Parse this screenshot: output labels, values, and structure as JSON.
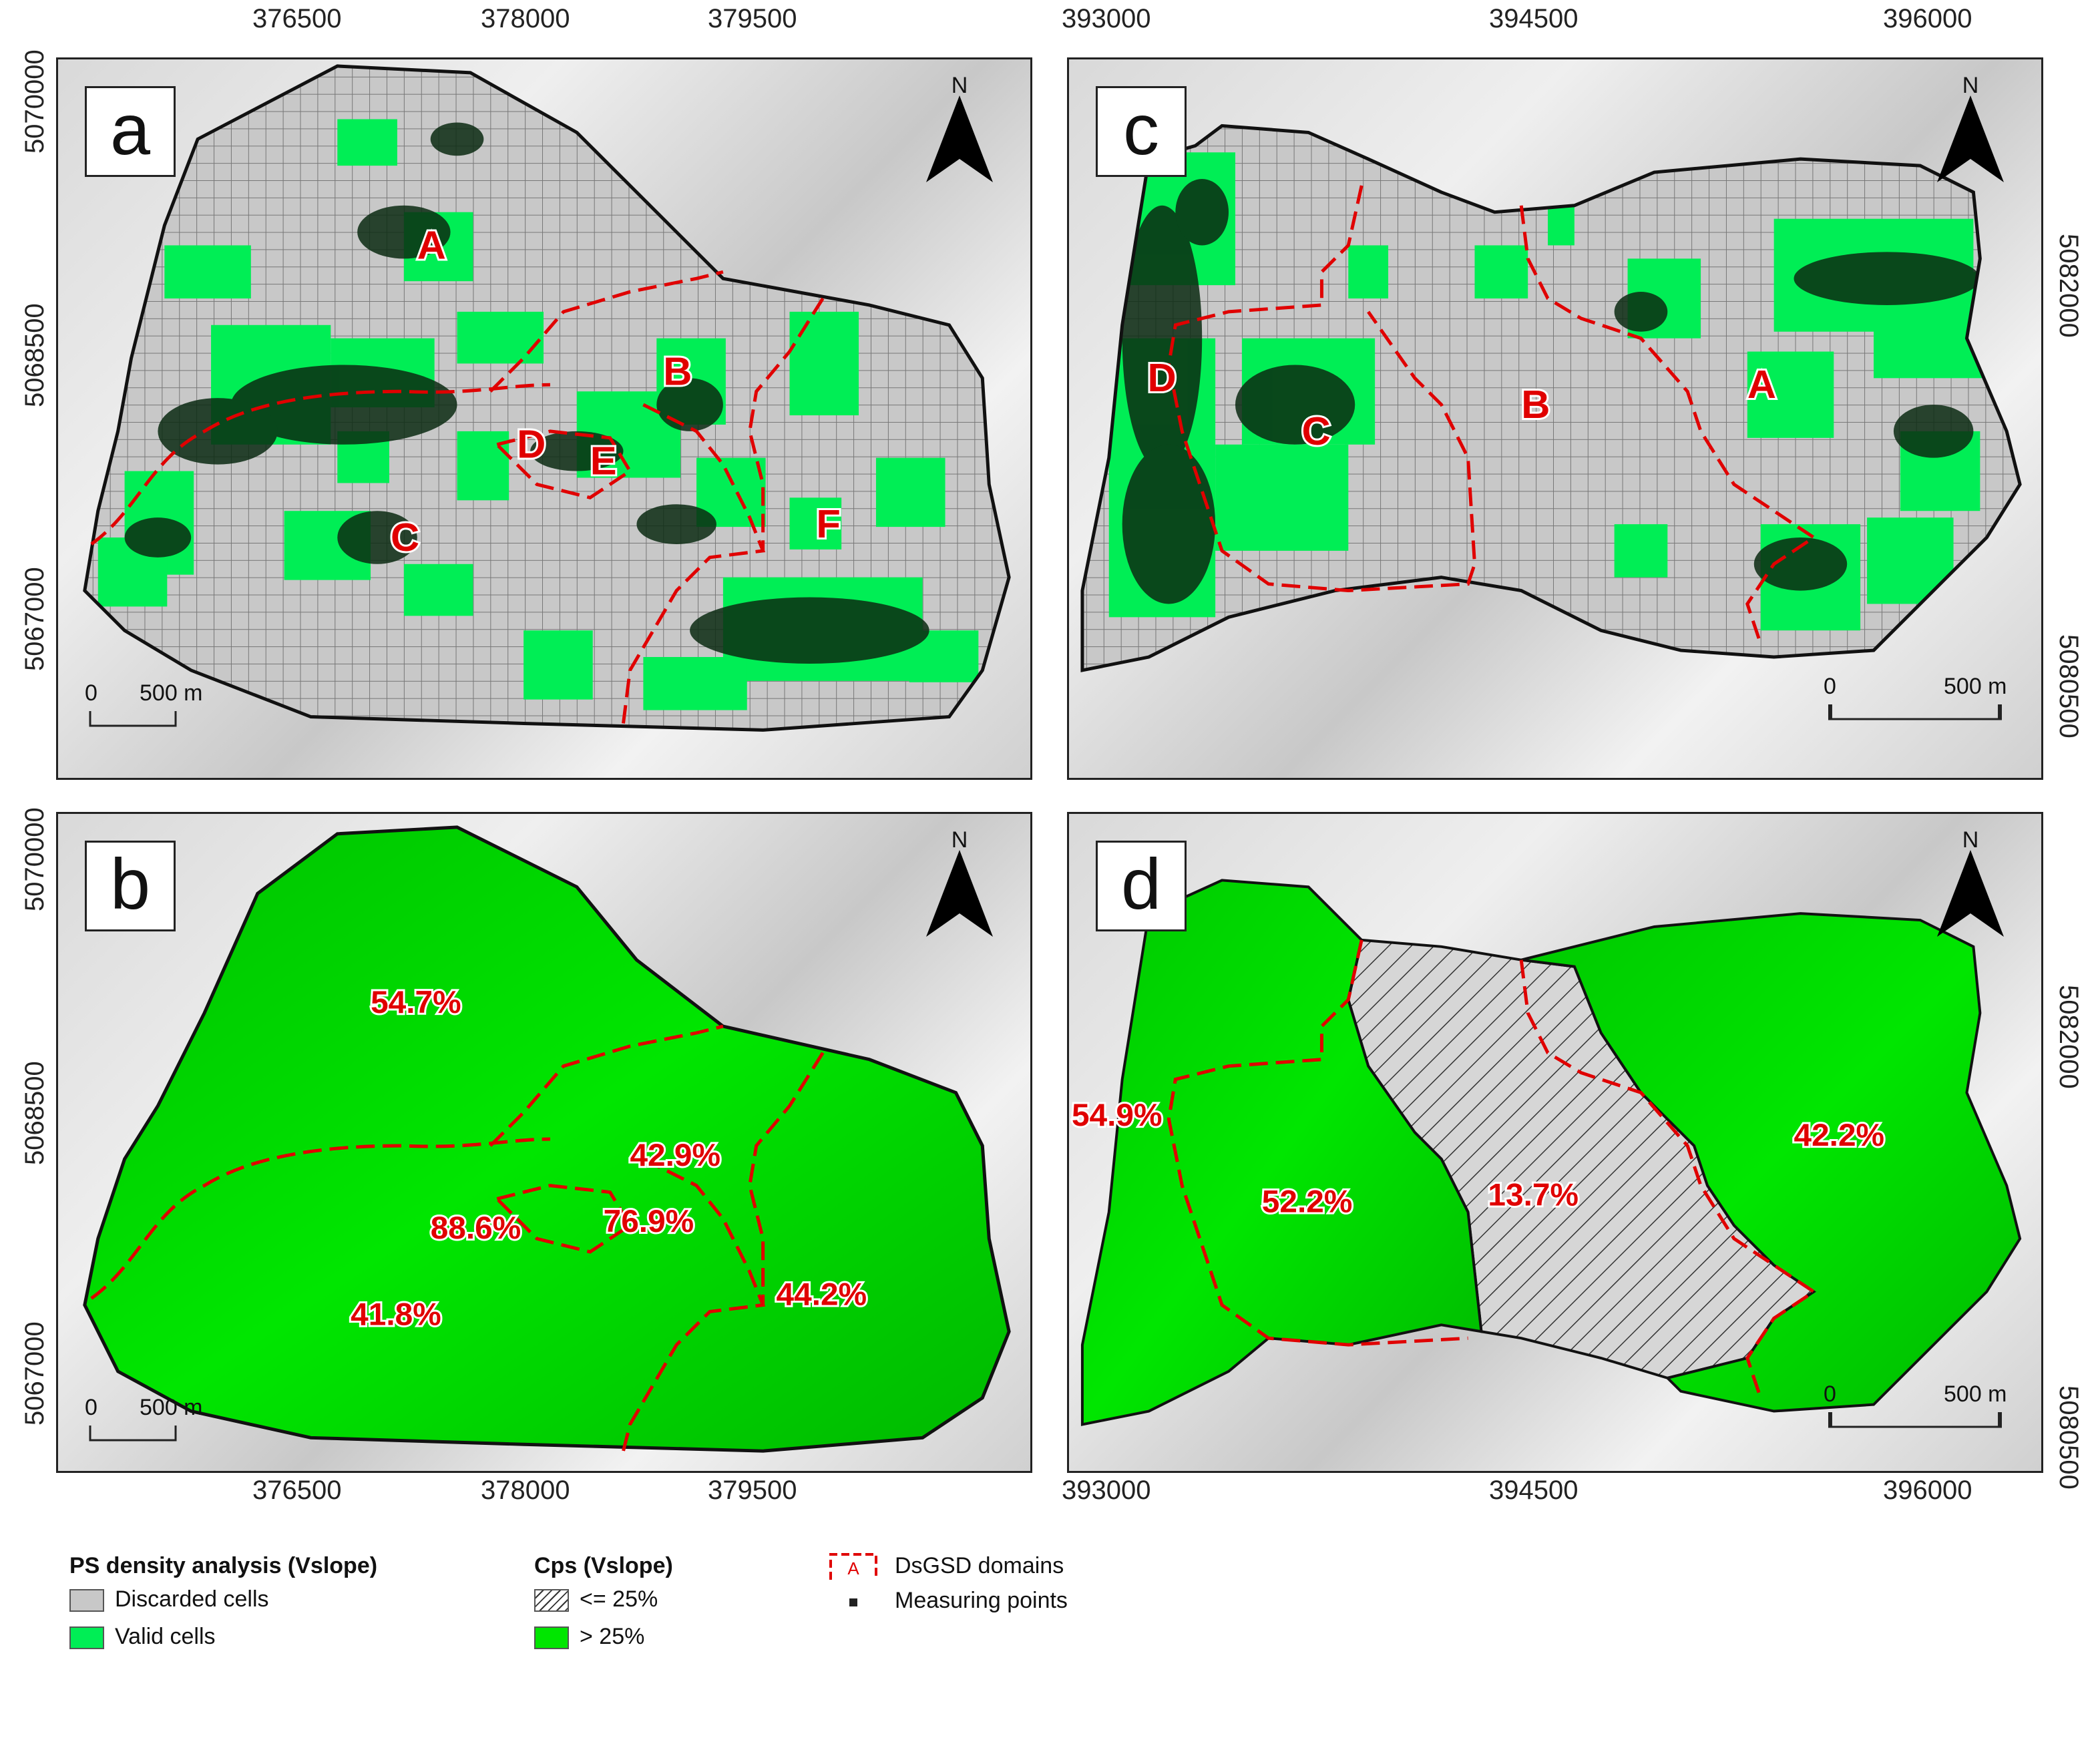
{
  "panels": {
    "a": {
      "letter": "a",
      "x_ticks": [
        "376500",
        "378000",
        "379500"
      ],
      "y_ticks": [
        "5070000",
        "5068500",
        "5067000"
      ],
      "labels": [
        "A",
        "B",
        "C",
        "D",
        "E",
        "F"
      ]
    },
    "b": {
      "letter": "b",
      "x_ticks": [
        "376500",
        "378000",
        "379500"
      ],
      "y_ticks": [
        "5070000",
        "5068500",
        "5067000"
      ],
      "percentages": [
        "54.7%",
        "42.9%",
        "88.6%",
        "76.9%",
        "41.8%",
        "44.2%"
      ]
    },
    "c": {
      "letter": "c",
      "x_ticks": [
        "393000",
        "394500",
        "396000"
      ],
      "y_ticks": [
        "5082000",
        "5080500"
      ],
      "labels": [
        "A",
        "B",
        "C",
        "D"
      ]
    },
    "d": {
      "letter": "d",
      "x_ticks": [
        "393000",
        "394500",
        "396000"
      ],
      "y_ticks": [
        "5082000",
        "5080500"
      ],
      "percentages": [
        "54.9%",
        "52.2%",
        "13.7%",
        "42.2%"
      ]
    }
  },
  "north_label": "N",
  "scale_bar": {
    "zero": "0",
    "distance": "500 m"
  },
  "legend": {
    "ps_density": {
      "title": "PS density analysis (Vslope)",
      "discarded": "Discarded cells",
      "valid": "Valid cells"
    },
    "cps": {
      "title": "Cps (Vslope)",
      "low": "<= 25%",
      "high": "> 25%"
    },
    "symbols": {
      "domain_letter": "A",
      "domains": "DsGSD domains",
      "points": "Measuring points"
    }
  },
  "colors": {
    "valid_cell": "#00ee55",
    "bright_green": "#00e600",
    "discarded_cell": "#c8c8c8",
    "domain_line": "#e00000",
    "outline": "#111111"
  }
}
